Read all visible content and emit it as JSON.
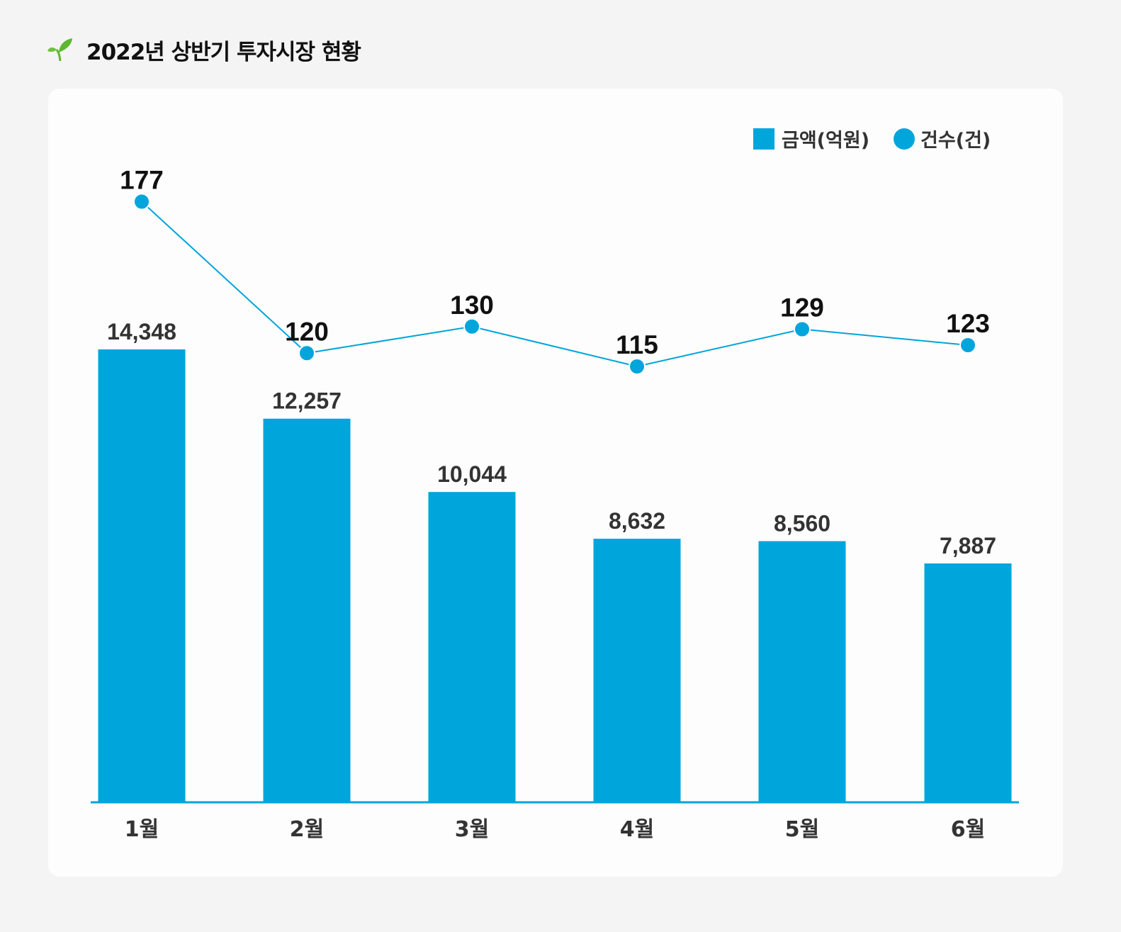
{
  "title": "2022년 상반기 투자시장 현황",
  "icon": "seedling-icon",
  "chart_data": {
    "type": "bar+line",
    "categories": [
      "1월",
      "2월",
      "3월",
      "4월",
      "5월",
      "6월"
    ],
    "series": [
      {
        "name": "금액(억원)",
        "type": "bar",
        "values": [
          14348,
          12257,
          10044,
          8632,
          8560,
          7887
        ],
        "labels": [
          "14,348",
          "12,257",
          "10,044",
          "8,632",
          "8,560",
          "7,887"
        ],
        "color": "#00a5db"
      },
      {
        "name": "건수(건)",
        "type": "line",
        "values": [
          177,
          120,
          130,
          115,
          129,
          123
        ],
        "labels": [
          "177",
          "120",
          "130",
          "115",
          "129",
          "123"
        ],
        "color": "#00a5db"
      }
    ],
    "legend": {
      "position": "top-right",
      "bar_label": "금액(억원)",
      "line_label": "건수(건)"
    },
    "grid": false
  }
}
